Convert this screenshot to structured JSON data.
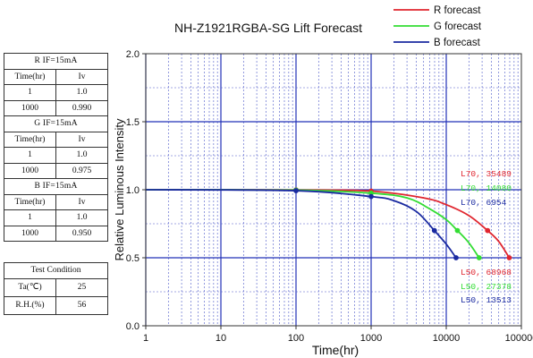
{
  "tables": [
    {
      "header": "R    IF=15mA",
      "columns": [
        "Time(hr)",
        "Iv"
      ],
      "rows": [
        [
          "1",
          "1.0"
        ],
        [
          "1000",
          "0.990"
        ]
      ]
    },
    {
      "header": "G    IF=15mA",
      "columns": [
        "Time(hr)",
        "Iv"
      ],
      "rows": [
        [
          "1",
          "1.0"
        ],
        [
          "1000",
          "0.975"
        ]
      ]
    },
    {
      "header": "B    IF=15mA",
      "columns": [
        "Time(hr)",
        "Iv"
      ],
      "rows": [
        [
          "1",
          "1.0"
        ],
        [
          "1000",
          "0.950"
        ]
      ]
    }
  ],
  "test_condition": {
    "title": "Test Condition",
    "rows": [
      [
        "Ta(℃)",
        "25"
      ],
      [
        "R.H.(%)",
        "56"
      ]
    ]
  },
  "chart_data": {
    "type": "line",
    "title": "NH-Z1921RGBA-SG Lift  Forecast",
    "xlabel": "Time(hr)",
    "ylabel": "Relative Luminous Intensity",
    "x_scale": "log",
    "xlim": [
      1,
      100000
    ],
    "ylim": [
      0,
      2.0
    ],
    "x_ticks": [
      "1",
      "10",
      "100",
      "1000",
      "10000",
      "100000"
    ],
    "y_ticks": [
      "0.0",
      "0.5",
      "1.0",
      "1.5",
      "2.0"
    ],
    "grid": true,
    "legend_position": "top-right",
    "series": [
      {
        "name": "R forecast",
        "color": "#e0262f",
        "points": [
          [
            1,
            1.0
          ],
          [
            100,
            0.999
          ],
          [
            1000,
            0.99
          ],
          [
            5000,
            0.94
          ],
          [
            10000,
            0.89
          ],
          [
            20000,
            0.81
          ],
          [
            35489,
            0.7
          ],
          [
            50000,
            0.62
          ],
          [
            68968,
            0.5
          ]
        ],
        "markers": [
          [
            100,
            0.999
          ],
          [
            1000,
            0.99
          ],
          [
            35489,
            0.7
          ],
          [
            68968,
            0.5
          ]
        ]
      },
      {
        "name": "G forecast",
        "color": "#33dd33",
        "points": [
          [
            1,
            1.0
          ],
          [
            100,
            0.997
          ],
          [
            1000,
            0.975
          ],
          [
            3000,
            0.94
          ],
          [
            6000,
            0.86
          ],
          [
            10000,
            0.78
          ],
          [
            14080,
            0.7
          ],
          [
            20000,
            0.61
          ],
          [
            27378,
            0.5
          ]
        ],
        "markers": [
          [
            100,
            0.997
          ],
          [
            1000,
            0.975
          ],
          [
            14080,
            0.7
          ],
          [
            27378,
            0.5
          ]
        ]
      },
      {
        "name": "B forecast",
        "color": "#1a2aa0",
        "points": [
          [
            1,
            1.0
          ],
          [
            100,
            0.993
          ],
          [
            1000,
            0.95
          ],
          [
            2000,
            0.92
          ],
          [
            4000,
            0.84
          ],
          [
            6954,
            0.7
          ],
          [
            10000,
            0.6
          ],
          [
            13513,
            0.5
          ]
        ],
        "markers": [
          [
            100,
            0.993
          ],
          [
            1000,
            0.95
          ],
          [
            6954,
            0.7
          ],
          [
            13513,
            0.5
          ]
        ]
      }
    ],
    "annotations": [
      {
        "text": "L70,  35489",
        "color": "#e0262f"
      },
      {
        "text": "L70,  14080",
        "color": "#33dd33"
      },
      {
        "text": "L70,  6954",
        "color": "#1a2aa0"
      },
      {
        "text": "L50,  68968",
        "color": "#e0262f"
      },
      {
        "text": "L50,  27378",
        "color": "#33dd33"
      },
      {
        "text": "L50,  13513",
        "color": "#1a2aa0"
      }
    ]
  }
}
